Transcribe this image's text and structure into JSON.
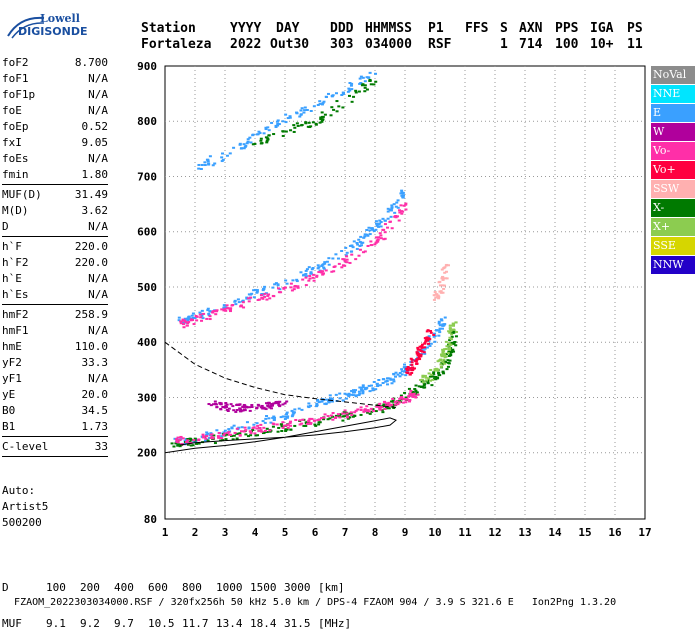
{
  "logo": {
    "line1": "Lowell",
    "line2": "DIGISONDE"
  },
  "header": {
    "labels": [
      "Station",
      "YYYY",
      "DAY",
      "DDD",
      "HHMMSS",
      "P1",
      "FFS",
      "S",
      "AXN",
      "PPS",
      "IGA",
      "PS"
    ],
    "values": [
      "Fortaleza",
      "2022",
      "Out30",
      "303",
      "034000",
      "RSF",
      "1",
      "714",
      "100",
      "10+",
      "11"
    ]
  },
  "params": {
    "group1": [
      {
        "name": "foF2",
        "value": "8.700"
      },
      {
        "name": "foF1",
        "value": "N/A"
      },
      {
        "name": "foF1p",
        "value": "N/A"
      },
      {
        "name": "foE",
        "value": "N/A"
      },
      {
        "name": "foEp",
        "value": "0.52"
      },
      {
        "name": "fxI",
        "value": "9.05"
      },
      {
        "name": "foEs",
        "value": "N/A"
      },
      {
        "name": "fmin",
        "value": "1.80"
      }
    ],
    "group2": [
      {
        "name": "MUF(D)",
        "value": "31.49"
      },
      {
        "name": "M(D)",
        "value": "3.62"
      },
      {
        "name": "D",
        "value": "N/A"
      }
    ],
    "group3": [
      {
        "name": "h`F",
        "value": "220.0"
      },
      {
        "name": "h`F2",
        "value": "220.0"
      },
      {
        "name": "h`E",
        "value": "N/A"
      },
      {
        "name": "h`Es",
        "value": "N/A"
      }
    ],
    "group4": [
      {
        "name": "hmF2",
        "value": "258.9"
      },
      {
        "name": "hmF1",
        "value": "N/A"
      },
      {
        "name": "hmE",
        "value": "110.0"
      },
      {
        "name": "yF2",
        "value": "33.3"
      },
      {
        "name": "yF1",
        "value": "N/A"
      },
      {
        "name": "yE",
        "value": "20.0"
      },
      {
        "name": "B0",
        "value": "34.5"
      },
      {
        "name": "B1",
        "value": "1.73"
      }
    ],
    "group5": [
      {
        "name": "C-level",
        "value": "33"
      }
    ]
  },
  "auto": {
    "line1": "Auto:",
    "line2": "Artist5",
    "line3": "500200"
  },
  "legend": [
    {
      "label": "NoVal",
      "color": "#8c8c8c"
    },
    {
      "label": "NNE",
      "color": "#00e5ff"
    },
    {
      "label": "E",
      "color": "#3aa0ff"
    },
    {
      "label": "W",
      "color": "#b0009c"
    },
    {
      "label": "Vo-",
      "color": "#ff2fa8"
    },
    {
      "label": "Vo+",
      "color": "#ff0040"
    },
    {
      "label": "SSW",
      "color": "#ffb0b0"
    },
    {
      "label": "X-",
      "color": "#007a00"
    },
    {
      "label": "X+",
      "color": "#8ccc50"
    },
    {
      "label": "SSE",
      "color": "#d6d600"
    },
    {
      "label": "NNW",
      "color": "#2200c8"
    }
  ],
  "footer": {
    "d_label": "D",
    "d_values": [
      "100",
      "200",
      "400",
      "600",
      "800",
      "1000",
      "1500",
      "3000",
      "[km]"
    ],
    "muf_label": "MUF",
    "muf_values": [
      "9.1",
      "9.2",
      "9.7",
      "10.5",
      "11.7",
      "13.4",
      "18.4",
      "31.5",
      "[MHz]"
    ],
    "info": "FZAOM_2022303034000.RSF / 320fx256h 50 kHz 5.0 km / DPS-4 FZAOM 904 / 3.9 S 321.6 E",
    "version": "Ion2Png 1.3.20"
  },
  "chart_data": {
    "type": "scatter",
    "xlim": [
      1,
      17
    ],
    "ylim": [
      80,
      900
    ],
    "xticks": [
      "1",
      "2",
      "3",
      "4",
      "5",
      "6",
      "7",
      "8",
      "9",
      "10",
      "11",
      "12",
      "13",
      "14",
      "15",
      "16",
      "17"
    ],
    "yticks": [
      "80",
      "200",
      "300",
      "400",
      "500",
      "600",
      "700",
      "800",
      "900"
    ],
    "grid": "dotted",
    "series": [
      {
        "color": "#3aa0ff",
        "points": [
          [
            1.2,
            220
          ],
          [
            2,
            225
          ],
          [
            3,
            240
          ],
          [
            4,
            255
          ],
          [
            5,
            270
          ],
          [
            6,
            290
          ],
          [
            6.5,
            300
          ],
          [
            7,
            305
          ],
          [
            7.5,
            315
          ],
          [
            8,
            325
          ],
          [
            8.5,
            335
          ],
          [
            9,
            355
          ],
          [
            9.5,
            380
          ],
          [
            10,
            420
          ],
          [
            10.3,
            440
          ]
        ]
      },
      {
        "color": "#007a00",
        "points": [
          [
            1.2,
            218
          ],
          [
            2,
            222
          ],
          [
            3,
            230
          ],
          [
            4,
            240
          ],
          [
            5,
            248
          ],
          [
            6,
            258
          ],
          [
            7,
            268
          ],
          [
            8,
            280
          ],
          [
            8.5,
            290
          ],
          [
            9,
            305
          ],
          [
            9.5,
            320
          ],
          [
            10,
            340
          ],
          [
            10.3,
            360
          ],
          [
            10.5,
            390
          ],
          [
            10.6,
            420
          ]
        ]
      },
      {
        "color": "#8ccc50",
        "points": [
          [
            9.5,
            330
          ],
          [
            10,
            350
          ],
          [
            10.3,
            380
          ],
          [
            10.5,
            410
          ],
          [
            10.6,
            440
          ]
        ]
      },
      {
        "color": "#ff2fa8",
        "points": [
          [
            1.3,
            222
          ],
          [
            2.2,
            228
          ],
          [
            3,
            235
          ],
          [
            4,
            245
          ],
          [
            5,
            252
          ],
          [
            6,
            262
          ],
          [
            7,
            272
          ],
          [
            8,
            283
          ],
          [
            8.5,
            292
          ],
          [
            9,
            300
          ],
          [
            9.3,
            310
          ]
        ]
      },
      {
        "color": "#b0009c",
        "points": [
          [
            2.5,
            290
          ],
          [
            3,
            285
          ],
          [
            3.5,
            282
          ],
          [
            4,
            285
          ],
          [
            4.5,
            288
          ],
          [
            5,
            292
          ]
        ]
      },
      {
        "color": "#ff0040",
        "points": [
          [
            9,
            340
          ],
          [
            9.2,
            360
          ],
          [
            9.4,
            380
          ],
          [
            9.6,
            400
          ],
          [
            9.8,
            420
          ]
        ]
      },
      {
        "color": "#3aa0ff",
        "points": [
          [
            1.5,
            440
          ],
          [
            2,
            450
          ],
          [
            3,
            470
          ],
          [
            4,
            490
          ],
          [
            5,
            510
          ],
          [
            6,
            535
          ],
          [
            7,
            565
          ],
          [
            7.5,
            585
          ],
          [
            8,
            610
          ],
          [
            8.5,
            640
          ],
          [
            9,
            680
          ]
        ]
      },
      {
        "color": "#ff2fa8",
        "points": [
          [
            1.5,
            435
          ],
          [
            2,
            442
          ],
          [
            3,
            460
          ],
          [
            4,
            478
          ],
          [
            5,
            496
          ],
          [
            6,
            520
          ],
          [
            7,
            548
          ],
          [
            8,
            585
          ],
          [
            8.5,
            615
          ],
          [
            9,
            650
          ]
        ]
      },
      {
        "color": "#3aa0ff",
        "points": [
          [
            2,
            720
          ],
          [
            3,
            740
          ],
          [
            4,
            780
          ],
          [
            5,
            805
          ],
          [
            6,
            830
          ],
          [
            7,
            860
          ],
          [
            8,
            890
          ]
        ]
      },
      {
        "color": "#007a00",
        "points": [
          [
            4,
            760
          ],
          [
            5,
            785
          ],
          [
            6,
            800
          ],
          [
            7,
            840
          ],
          [
            8,
            880
          ]
        ]
      },
      {
        "color": "#ffb0b0",
        "points": [
          [
            10,
            480
          ],
          [
            10.2,
            510
          ],
          [
            10.3,
            540
          ]
        ]
      }
    ],
    "profile_curve": [
      [
        1,
        200
      ],
      [
        2,
        208
      ],
      [
        3,
        213
      ],
      [
        4,
        220
      ],
      [
        5,
        228
      ],
      [
        6,
        238
      ],
      [
        7,
        248
      ],
      [
        8,
        258
      ],
      [
        8.5,
        263
      ],
      [
        8.7,
        258.9
      ],
      [
        8.5,
        250
      ],
      [
        8,
        245
      ],
      [
        7,
        238
      ],
      [
        6,
        232
      ],
      [
        5,
        228
      ],
      [
        4,
        225
      ],
      [
        3,
        222
      ],
      [
        2,
        218
      ],
      [
        1.5,
        214
      ]
    ],
    "dashed_curve": [
      [
        1,
        400
      ],
      [
        2,
        360
      ],
      [
        3,
        335
      ],
      [
        4,
        318
      ],
      [
        5,
        305
      ],
      [
        6,
        298
      ],
      [
        7,
        292
      ],
      [
        8,
        286
      ],
      [
        8.7,
        282
      ]
    ]
  }
}
